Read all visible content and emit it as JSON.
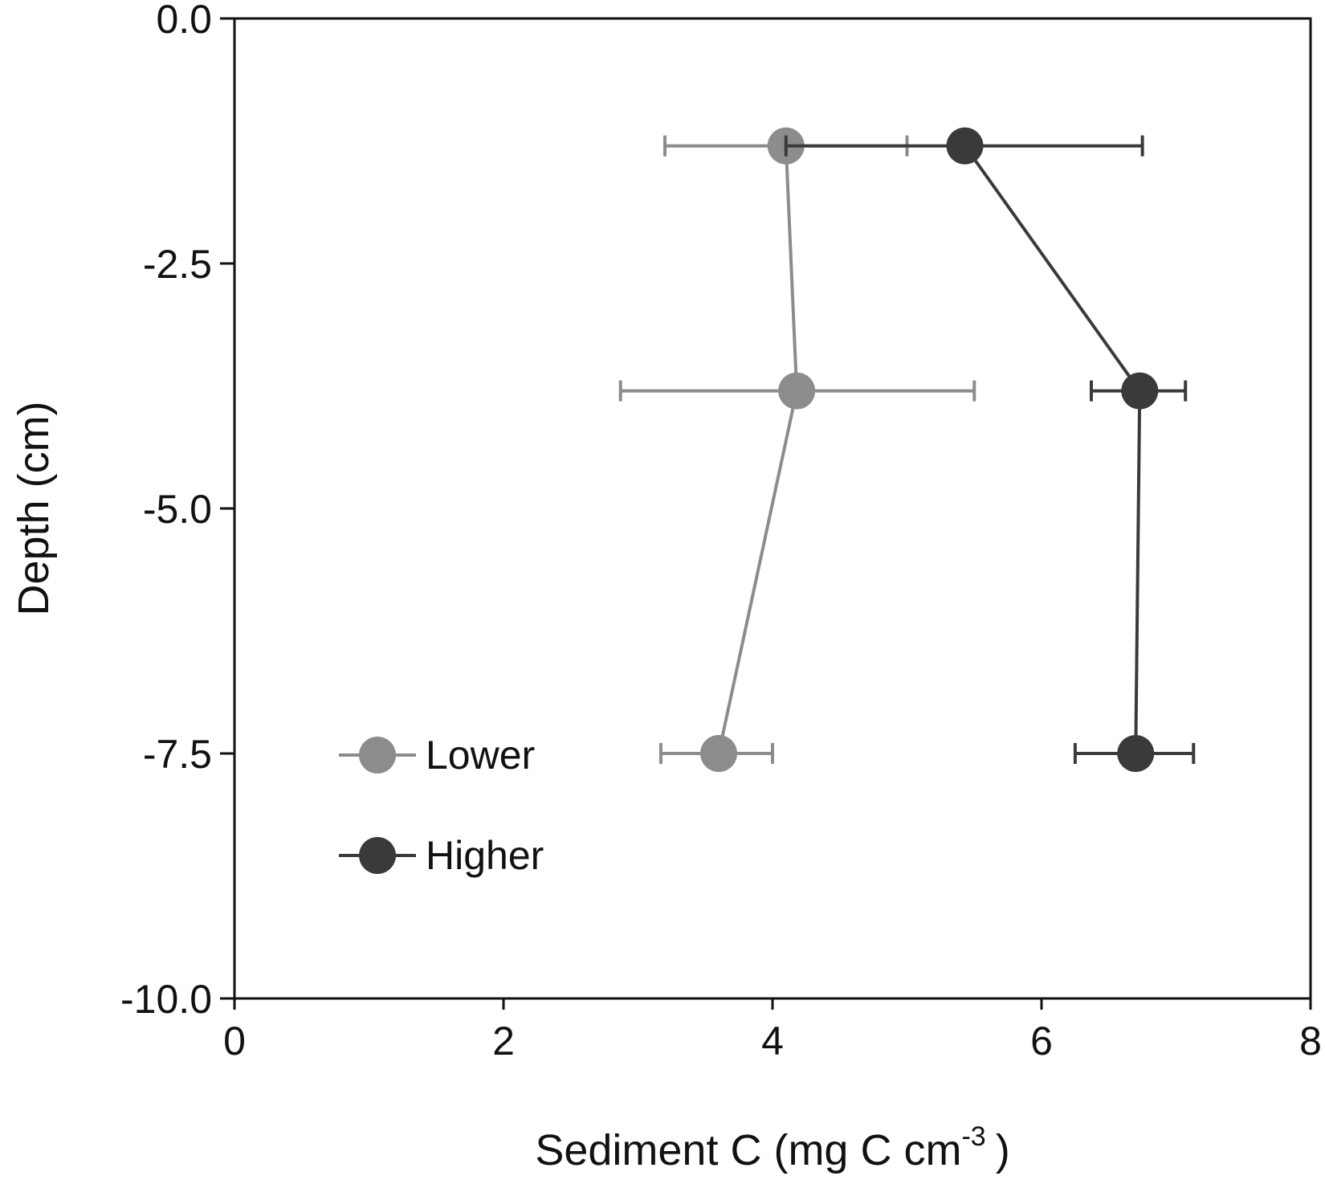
{
  "chart_data": {
    "type": "line",
    "xlabel": "Sediment C (mg C cm",
    "xlabel_superscript": "-3",
    "xlabel_close": ")",
    "ylabel": "Depth (cm)",
    "xlim": [
      0,
      8
    ],
    "ylim": [
      -10,
      0
    ],
    "x_ticks": [
      0,
      2,
      4,
      6,
      8
    ],
    "x_tick_labels": [
      "0",
      "2",
      "4",
      "6",
      "8"
    ],
    "y_ticks": [
      0,
      -2.5,
      -5,
      -7.5,
      -10
    ],
    "y_tick_labels": [
      "0.0",
      "-2.5",
      "-5.0",
      "-7.5",
      "-10.0"
    ],
    "grid": false,
    "legend_position": "bottom-left",
    "series": [
      {
        "name": "Lower",
        "color": "#8c8c8c",
        "points": [
          {
            "y": -1.3,
            "x": 4.1,
            "x_err_low": 3.2,
            "x_err_high": 5.0
          },
          {
            "y": -3.8,
            "x": 4.18,
            "x_err_low": 2.87,
            "x_err_high": 5.5
          },
          {
            "y": -7.5,
            "x": 3.6,
            "x_err_low": 3.17,
            "x_err_high": 4.0
          }
        ]
      },
      {
        "name": "Higher",
        "color": "#3a3a3a",
        "points": [
          {
            "y": -1.3,
            "x": 5.43,
            "x_err_low": 4.1,
            "x_err_high": 6.75
          },
          {
            "y": -3.8,
            "x": 6.73,
            "x_err_low": 6.37,
            "x_err_high": 7.07
          },
          {
            "y": -7.5,
            "x": 6.7,
            "x_err_low": 6.25,
            "x_err_high": 7.13
          }
        ]
      }
    ]
  }
}
